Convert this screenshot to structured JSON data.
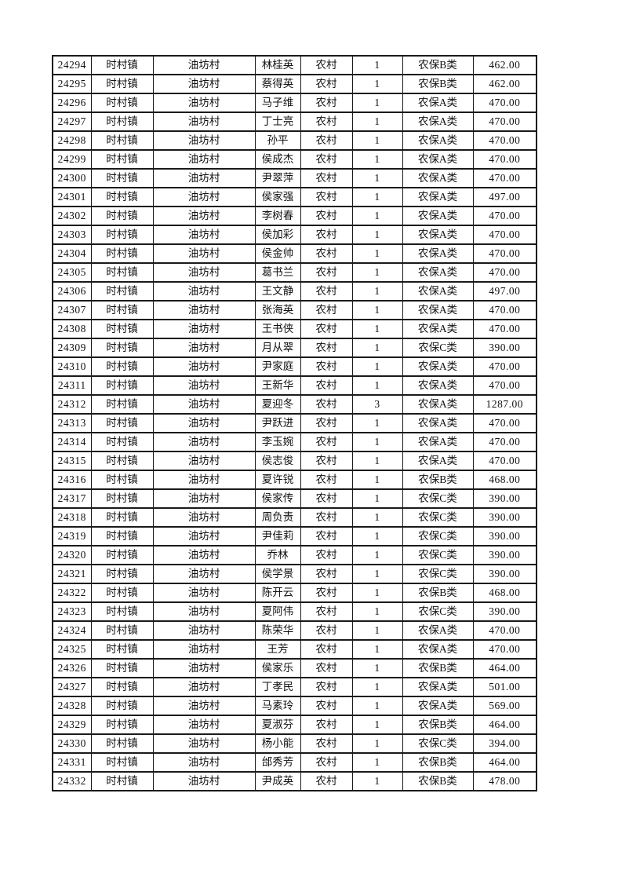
{
  "page": {
    "background_color": "#ffffff",
    "text_color": "#111111",
    "border_color": "#1a1a1a"
  },
  "table": {
    "column_keys": [
      "record_id",
      "town",
      "village",
      "person_name",
      "category",
      "person_count",
      "insurance_type",
      "amount"
    ],
    "rows": [
      [
        "24294",
        "时村镇",
        "油坊村",
        "林桂英",
        "农村",
        "1",
        "农保B类",
        "462.00"
      ],
      [
        "24295",
        "时村镇",
        "油坊村",
        "蔡得英",
        "农村",
        "1",
        "农保B类",
        "462.00"
      ],
      [
        "24296",
        "时村镇",
        "油坊村",
        "马子维",
        "农村",
        "1",
        "农保A类",
        "470.00"
      ],
      [
        "24297",
        "时村镇",
        "油坊村",
        "丁士亮",
        "农村",
        "1",
        "农保A类",
        "470.00"
      ],
      [
        "24298",
        "时村镇",
        "油坊村",
        "孙平",
        "农村",
        "1",
        "农保A类",
        "470.00"
      ],
      [
        "24299",
        "时村镇",
        "油坊村",
        "侯成杰",
        "农村",
        "1",
        "农保A类",
        "470.00"
      ],
      [
        "24300",
        "时村镇",
        "油坊村",
        "尹翠萍",
        "农村",
        "1",
        "农保A类",
        "470.00"
      ],
      [
        "24301",
        "时村镇",
        "油坊村",
        "侯家强",
        "农村",
        "1",
        "农保A类",
        "497.00"
      ],
      [
        "24302",
        "时村镇",
        "油坊村",
        "李树春",
        "农村",
        "1",
        "农保A类",
        "470.00"
      ],
      [
        "24303",
        "时村镇",
        "油坊村",
        "侯加彩",
        "农村",
        "1",
        "农保A类",
        "470.00"
      ],
      [
        "24304",
        "时村镇",
        "油坊村",
        "侯金帅",
        "农村",
        "1",
        "农保A类",
        "470.00"
      ],
      [
        "24305",
        "时村镇",
        "油坊村",
        "葛书兰",
        "农村",
        "1",
        "农保A类",
        "470.00"
      ],
      [
        "24306",
        "时村镇",
        "油坊村",
        "王文静",
        "农村",
        "1",
        "农保A类",
        "497.00"
      ],
      [
        "24307",
        "时村镇",
        "油坊村",
        "张海英",
        "农村",
        "1",
        "农保A类",
        "470.00"
      ],
      [
        "24308",
        "时村镇",
        "油坊村",
        "王书侠",
        "农村",
        "1",
        "农保A类",
        "470.00"
      ],
      [
        "24309",
        "时村镇",
        "油坊村",
        "月从翠",
        "农村",
        "1",
        "农保C类",
        "390.00"
      ],
      [
        "24310",
        "时村镇",
        "油坊村",
        "尹家庭",
        "农村",
        "1",
        "农保A类",
        "470.00"
      ],
      [
        "24311",
        "时村镇",
        "油坊村",
        "王新华",
        "农村",
        "1",
        "农保A类",
        "470.00"
      ],
      [
        "24312",
        "时村镇",
        "油坊村",
        "夏迎冬",
        "农村",
        "3",
        "农保A类",
        "1287.00"
      ],
      [
        "24313",
        "时村镇",
        "油坊村",
        "尹跃进",
        "农村",
        "1",
        "农保A类",
        "470.00"
      ],
      [
        "24314",
        "时村镇",
        "油坊村",
        "李玉婉",
        "农村",
        "1",
        "农保A类",
        "470.00"
      ],
      [
        "24315",
        "时村镇",
        "油坊村",
        "侯志俊",
        "农村",
        "1",
        "农保A类",
        "470.00"
      ],
      [
        "24316",
        "时村镇",
        "油坊村",
        "夏许锐",
        "农村",
        "1",
        "农保B类",
        "468.00"
      ],
      [
        "24317",
        "时村镇",
        "油坊村",
        "侯家传",
        "农村",
        "1",
        "农保C类",
        "390.00"
      ],
      [
        "24318",
        "时村镇",
        "油坊村",
        "周负责",
        "农村",
        "1",
        "农保C类",
        "390.00"
      ],
      [
        "24319",
        "时村镇",
        "油坊村",
        "尹佳莉",
        "农村",
        "1",
        "农保C类",
        "390.00"
      ],
      [
        "24320",
        "时村镇",
        "油坊村",
        "乔林",
        "农村",
        "1",
        "农保C类",
        "390.00"
      ],
      [
        "24321",
        "时村镇",
        "油坊村",
        "侯学景",
        "农村",
        "1",
        "农保C类",
        "390.00"
      ],
      [
        "24322",
        "时村镇",
        "油坊村",
        "陈开云",
        "农村",
        "1",
        "农保B类",
        "468.00"
      ],
      [
        "24323",
        "时村镇",
        "油坊村",
        "夏阿伟",
        "农村",
        "1",
        "农保C类",
        "390.00"
      ],
      [
        "24324",
        "时村镇",
        "油坊村",
        "陈荣华",
        "农村",
        "1",
        "农保A类",
        "470.00"
      ],
      [
        "24325",
        "时村镇",
        "油坊村",
        "王芳",
        "农村",
        "1",
        "农保A类",
        "470.00"
      ],
      [
        "24326",
        "时村镇",
        "油坊村",
        "侯家乐",
        "农村",
        "1",
        "农保B类",
        "464.00"
      ],
      [
        "24327",
        "时村镇",
        "油坊村",
        "丁孝民",
        "农村",
        "1",
        "农保A类",
        "501.00"
      ],
      [
        "24328",
        "时村镇",
        "油坊村",
        "马素玲",
        "农村",
        "1",
        "农保A类",
        "569.00"
      ],
      [
        "24329",
        "时村镇",
        "油坊村",
        "夏淑芬",
        "农村",
        "1",
        "农保B类",
        "464.00"
      ],
      [
        "24330",
        "时村镇",
        "油坊村",
        "杨小能",
        "农村",
        "1",
        "农保C类",
        "394.00"
      ],
      [
        "24331",
        "时村镇",
        "油坊村",
        "邰秀芳",
        "农村",
        "1",
        "农保B类",
        "464.00"
      ],
      [
        "24332",
        "时村镇",
        "油坊村",
        "尹成英",
        "农村",
        "1",
        "农保B类",
        "478.00"
      ]
    ]
  }
}
